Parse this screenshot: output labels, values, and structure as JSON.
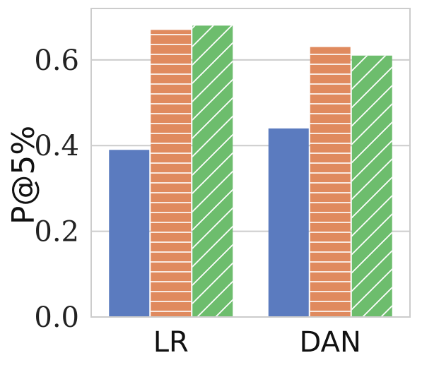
{
  "chart_data": {
    "type": "bar",
    "categories": [
      "LR",
      "DAN"
    ],
    "series": [
      {
        "values": [
          0.39,
          0.44
        ],
        "color": "#5b7bbf",
        "hatch": "none"
      },
      {
        "values": [
          0.67,
          0.63
        ],
        "color": "#e08a5e",
        "hatch": "horizontal"
      },
      {
        "values": [
          0.68,
          0.61
        ],
        "color": "#6dbd6d",
        "hatch": "diagonal"
      }
    ],
    "ylabel": "P@5%",
    "xlabel": "",
    "ylim": [
      0,
      0.72
    ],
    "yticks": [
      0.0,
      0.2,
      0.4,
      0.6
    ],
    "ytick_labels": [
      "0.0",
      "0.2",
      "0.4",
      "0.6"
    ],
    "grid": "horizontal",
    "legend": "none"
  }
}
